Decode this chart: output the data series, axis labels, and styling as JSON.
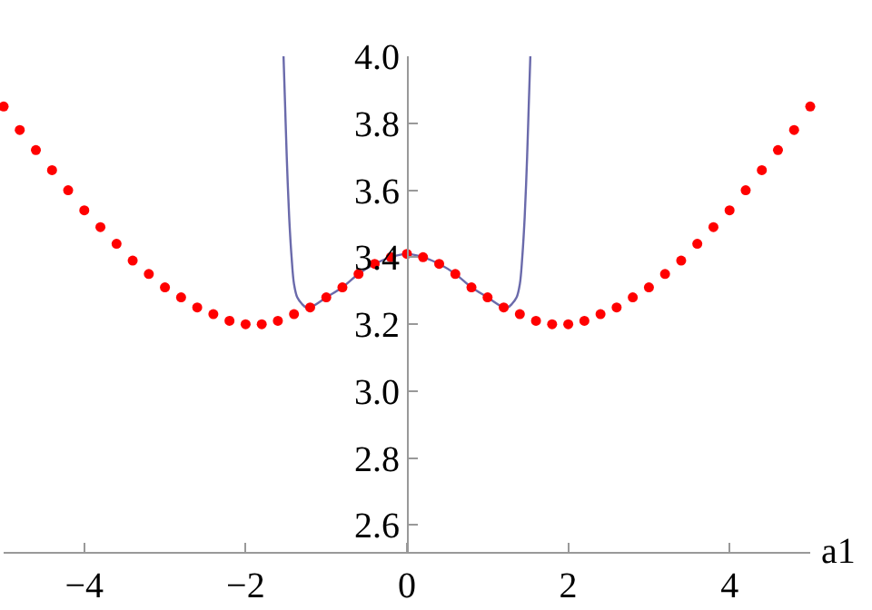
{
  "chart_data": {
    "type": "scatter",
    "xlabel": "a1",
    "xlim": [
      -5,
      5
    ],
    "ylim": [
      2.52,
      4.0
    ],
    "xticks": [
      {
        "value": -4,
        "label": "−4"
      },
      {
        "value": -2,
        "label": "−2"
      },
      {
        "value": 0,
        "label": "0"
      },
      {
        "value": 2,
        "label": "2"
      },
      {
        "value": 4,
        "label": "4"
      }
    ],
    "yticks": [
      {
        "value": 2.6,
        "label": "2.6"
      },
      {
        "value": 2.8,
        "label": "2.8"
      },
      {
        "value": 3.0,
        "label": "3.0"
      },
      {
        "value": 3.2,
        "label": "3.2"
      },
      {
        "value": 3.4,
        "label": "3.4"
      },
      {
        "value": 3.6,
        "label": "3.6"
      },
      {
        "value": 3.8,
        "label": "3.8"
      },
      {
        "value": 4.0,
        "label": "4.0"
      }
    ],
    "series": [
      {
        "type": "line",
        "color": "#6a6aab",
        "x": [
          -1.53,
          -1.51,
          -1.49,
          -1.46,
          -1.43,
          -1.4,
          -1.36,
          -1.3,
          -1.25,
          -1.2,
          -1.0,
          -0.8,
          -0.6,
          -0.4,
          -0.2,
          0,
          0.2,
          0.4,
          0.6,
          0.8,
          1.0,
          1.2,
          1.25,
          1.3,
          1.36,
          1.4,
          1.43,
          1.46,
          1.49,
          1.51,
          1.53
        ],
        "values": [
          4.0,
          3.85,
          3.7,
          3.52,
          3.4,
          3.32,
          3.28,
          3.26,
          3.25,
          3.25,
          3.28,
          3.31,
          3.35,
          3.38,
          3.4,
          3.41,
          3.4,
          3.38,
          3.35,
          3.31,
          3.28,
          3.25,
          3.25,
          3.26,
          3.28,
          3.32,
          3.4,
          3.52,
          3.7,
          3.85,
          4.0
        ]
      },
      {
        "marker": "circle",
        "color": "#ff0000",
        "x": [
          -5,
          -4.8,
          -4.6,
          -4.4,
          -4.2,
          -4,
          -3.8,
          -3.6,
          -3.4,
          -3.2,
          -3,
          -2.8,
          -2.6,
          -2.4,
          -2.2,
          -2,
          -1.8,
          -1.6,
          -1.4,
          -1.2,
          -1,
          -0.8,
          -0.6,
          -0.4,
          -0.2,
          0,
          0.2,
          0.4,
          0.6,
          0.8,
          1,
          1.2,
          1.4,
          1.6,
          1.8,
          2,
          2.2,
          2.4,
          2.6,
          2.8,
          3,
          3.2,
          3.4,
          3.6,
          3.8,
          4,
          4.2,
          4.4,
          4.6,
          4.8,
          5
        ],
        "values": [
          3.85,
          3.78,
          3.72,
          3.66,
          3.6,
          3.54,
          3.49,
          3.44,
          3.39,
          3.35,
          3.31,
          3.28,
          3.25,
          3.23,
          3.21,
          3.2,
          3.2,
          3.21,
          3.23,
          3.25,
          3.28,
          3.31,
          3.35,
          3.38,
          3.4,
          3.41,
          3.4,
          3.38,
          3.35,
          3.31,
          3.28,
          3.25,
          3.23,
          3.21,
          3.2,
          3.2,
          3.21,
          3.23,
          3.25,
          3.28,
          3.31,
          3.35,
          3.39,
          3.44,
          3.49,
          3.54,
          3.6,
          3.66,
          3.72,
          3.78,
          3.85
        ]
      }
    ]
  }
}
